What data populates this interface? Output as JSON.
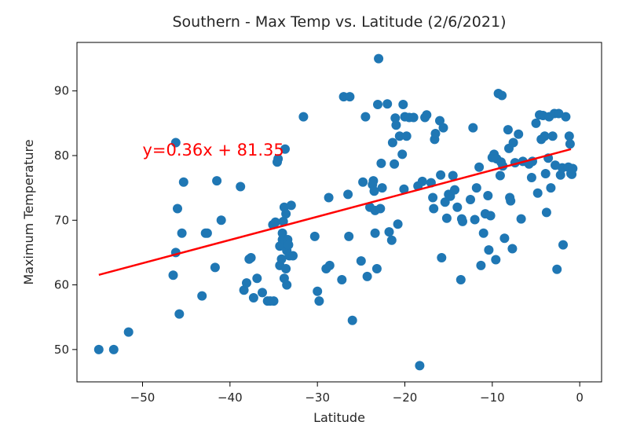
{
  "chart_data": {
    "type": "scatter",
    "title": "Southern - Max Temp vs. Latitude (2/6/2021)",
    "xlabel": "Latitude",
    "ylabel": "Maximum Temperature",
    "xlim": [
      -57.5,
      2.5
    ],
    "ylim": [
      45,
      97.5
    ],
    "xticks": [
      -50,
      -40,
      -30,
      -20,
      -10,
      0
    ],
    "yticks": [
      50,
      60,
      70,
      80,
      90
    ],
    "grid": false,
    "point_color": "#1f77b4",
    "line_color": "#ff0000",
    "regression": {
      "slope": 0.36,
      "intercept": 81.35,
      "x_range": [
        -55,
        -1
      ],
      "label": "y=0.36x + 81.35",
      "label_anchor": [
        -50,
        80
      ]
    },
    "series": [
      {
        "points": [
          [
            -55,
            50
          ],
          [
            -53.3,
            50
          ],
          [
            -51.6,
            52.7
          ],
          [
            -46.5,
            61.5
          ],
          [
            -46.2,
            82
          ],
          [
            -46.2,
            65
          ],
          [
            -46,
            71.8
          ],
          [
            -45.8,
            55.5
          ],
          [
            -45.5,
            68
          ],
          [
            -45.3,
            75.9
          ],
          [
            -43.2,
            58.3
          ],
          [
            -42.8,
            68
          ],
          [
            -42.6,
            68
          ],
          [
            -41.7,
            62.7
          ],
          [
            -41.5,
            76.1
          ],
          [
            -41,
            70
          ],
          [
            -38.8,
            75.2
          ],
          [
            -38.4,
            59.2
          ],
          [
            -38.1,
            60.3
          ],
          [
            -37.8,
            64
          ],
          [
            -37.6,
            64.2
          ],
          [
            -37.3,
            58
          ],
          [
            -36.9,
            61
          ],
          [
            -36.3,
            58.8
          ],
          [
            -35.7,
            57.5
          ],
          [
            -35.4,
            57.5
          ],
          [
            -35,
            57.5
          ],
          [
            -35.1,
            69.3
          ],
          [
            -34.8,
            69.7
          ],
          [
            -34.6,
            79
          ],
          [
            -34.5,
            79.5
          ],
          [
            -34.3,
            63
          ],
          [
            -34.1,
            64
          ],
          [
            -34.3,
            66
          ],
          [
            -34,
            67
          ],
          [
            -34,
            68
          ],
          [
            -33.9,
            69.8
          ],
          [
            -33.8,
            72
          ],
          [
            -33.7,
            81
          ],
          [
            -33.6,
            71
          ],
          [
            -33.7,
            66.9
          ],
          [
            -33.5,
            65.3
          ],
          [
            -33.6,
            62.5
          ],
          [
            -33.8,
            61
          ],
          [
            -33.5,
            60
          ],
          [
            -33.4,
            67
          ],
          [
            -33.3,
            66.2
          ],
          [
            -33.2,
            64.5
          ],
          [
            -33,
            72.3
          ],
          [
            -32.8,
            64.5
          ],
          [
            -31.6,
            86
          ],
          [
            -30.3,
            67.5
          ],
          [
            -30,
            59
          ],
          [
            -29.8,
            57.5
          ],
          [
            -29,
            62.5
          ],
          [
            -28.7,
            73.5
          ],
          [
            -28.6,
            63
          ],
          [
            -27.2,
            60.8
          ],
          [
            -27,
            89.1
          ],
          [
            -26.5,
            74
          ],
          [
            -26.4,
            67.5
          ],
          [
            -26.3,
            89.1
          ],
          [
            -26,
            54.5
          ],
          [
            -25,
            63.7
          ],
          [
            -24.8,
            75.9
          ],
          [
            -24.5,
            86
          ],
          [
            -24.3,
            61.3
          ],
          [
            -24,
            72
          ],
          [
            -23.7,
            75.5
          ],
          [
            -23.6,
            76.1
          ],
          [
            -23.5,
            74.5
          ],
          [
            -23.4,
            71.5
          ],
          [
            -23.4,
            68
          ],
          [
            -23.2,
            62.5
          ],
          [
            -23.1,
            87.9
          ],
          [
            -23,
            95
          ],
          [
            -22.8,
            71.8
          ],
          [
            -22.7,
            78.8
          ],
          [
            -22.6,
            75
          ],
          [
            -22,
            88
          ],
          [
            -21.8,
            68.2
          ],
          [
            -21.5,
            66.9
          ],
          [
            -21.4,
            82
          ],
          [
            -21.2,
            78.7
          ],
          [
            -21.1,
            85.8
          ],
          [
            -21,
            84.7
          ],
          [
            -20.8,
            69.4
          ],
          [
            -20.6,
            83
          ],
          [
            -20.3,
            80.2
          ],
          [
            -20.2,
            87.9
          ],
          [
            -20.1,
            74.8
          ],
          [
            -20,
            86
          ],
          [
            -19.8,
            83
          ],
          [
            -19.5,
            85.9
          ],
          [
            -19,
            85.9
          ],
          [
            -18.5,
            75.3
          ],
          [
            -18.3,
            47.5
          ],
          [
            -18,
            76
          ],
          [
            -17.7,
            85.9
          ],
          [
            -17.5,
            86.3
          ],
          [
            -17,
            75.8
          ],
          [
            -16.8,
            73.5
          ],
          [
            -16.7,
            71.8
          ],
          [
            -16.6,
            82.5
          ],
          [
            -16.5,
            83.4
          ],
          [
            -16,
            85.4
          ],
          [
            -15.9,
            77
          ],
          [
            -15.8,
            64.2
          ],
          [
            -15.6,
            84.3
          ],
          [
            -15.4,
            72.8
          ],
          [
            -15.2,
            70.3
          ],
          [
            -15,
            74
          ],
          [
            -14.8,
            73.7
          ],
          [
            -14.5,
            76.9
          ],
          [
            -14.3,
            74.7
          ],
          [
            -14,
            72
          ],
          [
            -13.6,
            60.8
          ],
          [
            -13.5,
            70.2
          ],
          [
            -13.4,
            69.8
          ],
          [
            -12.5,
            73.2
          ],
          [
            -12.2,
            84.3
          ],
          [
            -12,
            70.1
          ],
          [
            -11.8,
            75
          ],
          [
            -11.5,
            78.2
          ],
          [
            -11.3,
            63
          ],
          [
            -11,
            68
          ],
          [
            -10.8,
            71
          ],
          [
            -10.5,
            73.8
          ],
          [
            -10.4,
            65.4
          ],
          [
            -10.2,
            70.7
          ],
          [
            -10,
            79.7
          ],
          [
            -9.8,
            80.2
          ],
          [
            -9.6,
            63.9
          ],
          [
            -9.5,
            79.5
          ],
          [
            -9.3,
            89.6
          ],
          [
            -9.1,
            76.9
          ],
          [
            -9,
            79
          ],
          [
            -8.9,
            89.3
          ],
          [
            -8.8,
            78.4
          ],
          [
            -8.6,
            67.2
          ],
          [
            -8.2,
            84
          ],
          [
            -8.1,
            81.1
          ],
          [
            -8,
            73.5
          ],
          [
            -7.9,
            73
          ],
          [
            -7.7,
            65.6
          ],
          [
            -7.6,
            82
          ],
          [
            -7.4,
            78.9
          ],
          [
            -7,
            83.3
          ],
          [
            -6.7,
            70.2
          ],
          [
            -6.5,
            79.1
          ],
          [
            -5.8,
            78.7
          ],
          [
            -5.5,
            76.6
          ],
          [
            -5.4,
            79.1
          ],
          [
            -5,
            85
          ],
          [
            -4.8,
            74.2
          ],
          [
            -4.6,
            86.3
          ],
          [
            -4.4,
            82.5
          ],
          [
            -4.2,
            86.2
          ],
          [
            -4,
            83
          ],
          [
            -3.9,
            77.2
          ],
          [
            -3.8,
            71.2
          ],
          [
            -3.6,
            79.6
          ],
          [
            -3.5,
            86
          ],
          [
            -3.3,
            75
          ],
          [
            -3.1,
            83
          ],
          [
            -2.9,
            86.5
          ],
          [
            -2.8,
            78.5
          ],
          [
            -2.6,
            62.4
          ],
          [
            -2.4,
            86.5
          ],
          [
            -2.2,
            77
          ],
          [
            -2,
            78.1
          ],
          [
            -1.9,
            66.2
          ],
          [
            -1.6,
            86
          ],
          [
            -1.3,
            78.2
          ],
          [
            -1.2,
            83
          ],
          [
            -1.1,
            81.8
          ],
          [
            -1,
            77.2
          ],
          [
            -0.9,
            77.1
          ],
          [
            -0.8,
            78
          ]
        ]
      }
    ]
  }
}
